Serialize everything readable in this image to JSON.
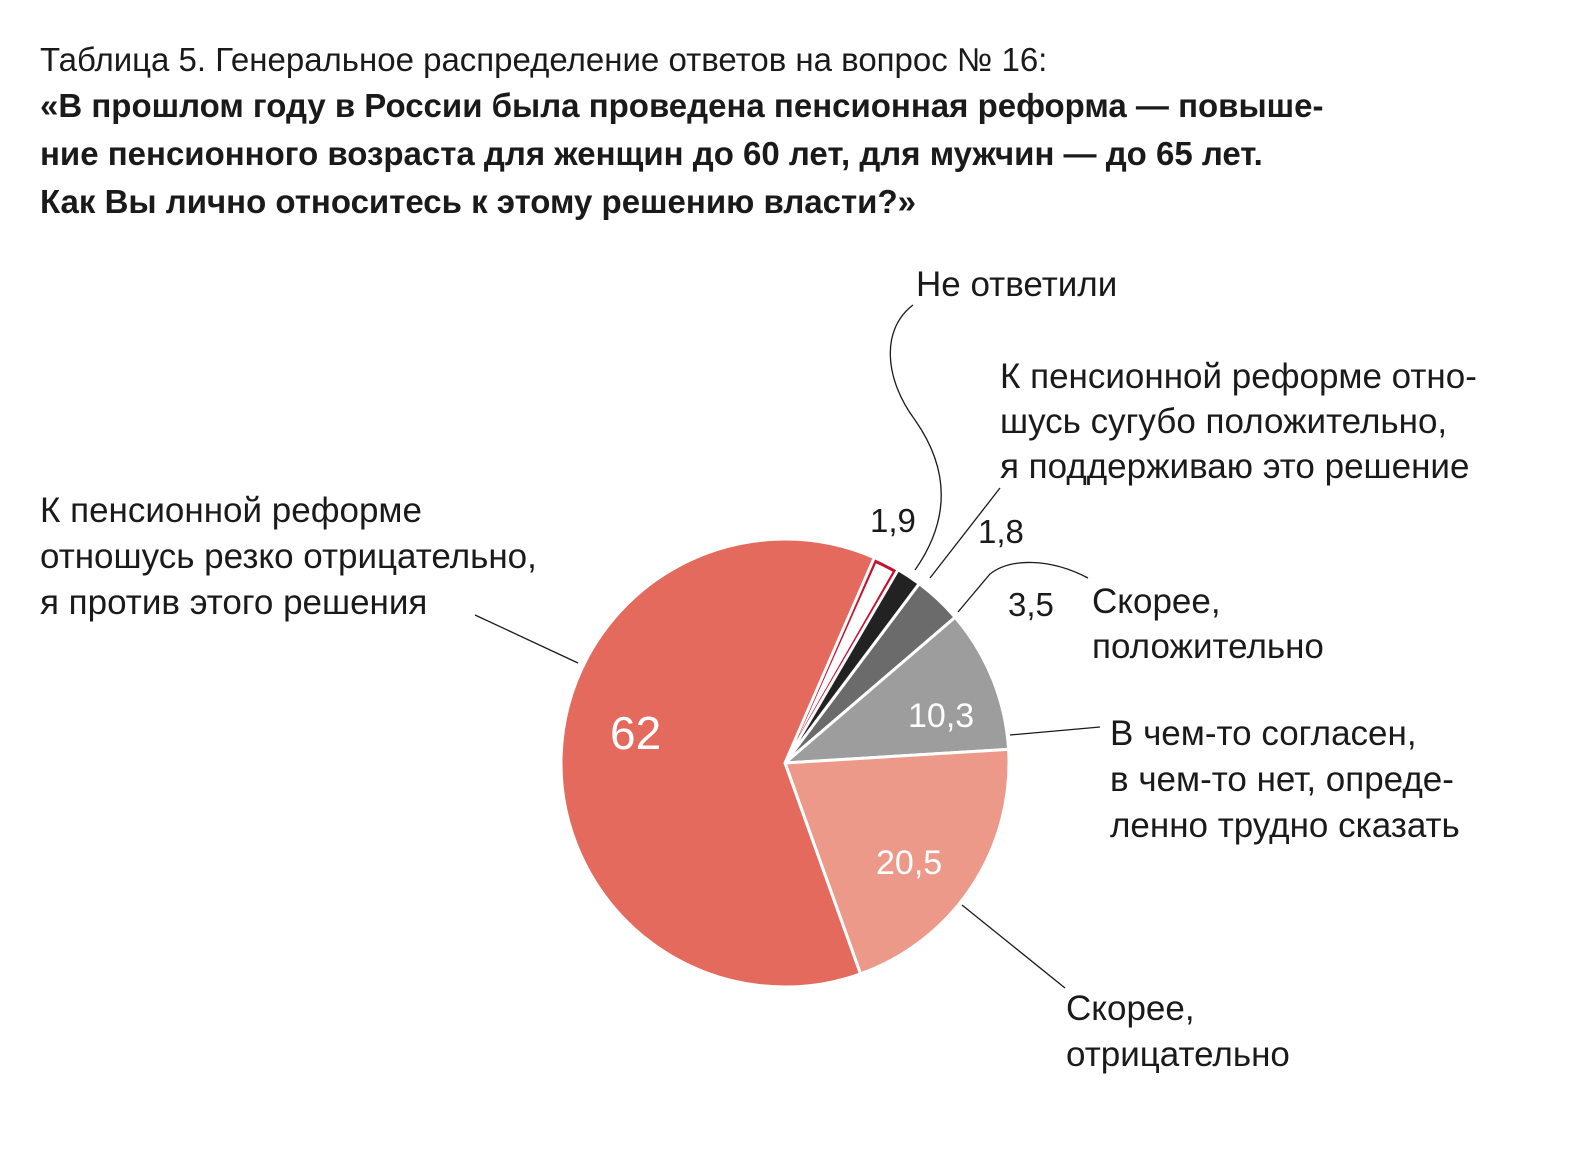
{
  "caption": {
    "title": "Таблица 5. Генеральное распределение ответов на вопрос № 16:",
    "question_lines": [
      "«В прошлом году в России была проведена пенсионная реформа — повыше-",
      "ние пенсионного возраста для женщин до 60 лет, для мужчин — до 65 лет.",
      "Как Вы лично относитесь к этому решению власти?»"
    ]
  },
  "chart_data": {
    "type": "pie",
    "title": "",
    "slices": [
      {
        "name_lines": [
          "Не ответили"
        ],
        "value": 1.9,
        "value_label": "1,9",
        "color": "#ffffff",
        "stroke": "#c8102e"
      },
      {
        "name_lines": [
          "К пенсионной реформе отно-",
          "шусь сугубо положительно,",
          "я поддерживаю это решение"
        ],
        "value": 1.8,
        "value_label": "1,8",
        "color": "#222222",
        "stroke": "#ffffff"
      },
      {
        "name_lines": [
          "Скорее,",
          "положительно"
        ],
        "value": 3.5,
        "value_label": "3,5",
        "color": "#6b6b6b",
        "stroke": "#ffffff"
      },
      {
        "name_lines": [
          "В чем-то согласен,",
          "в чем-то нет, опреде-",
          "ленно трудно сказать"
        ],
        "value": 10.3,
        "value_label": "10,3",
        "color": "#9d9d9d",
        "stroke": "#ffffff"
      },
      {
        "name_lines": [
          "Скорее,",
          "отрицательно"
        ],
        "value": 20.5,
        "value_label": "20,5",
        "color": "#ec998a",
        "stroke": "#ffffff"
      },
      {
        "name_lines": [
          "К пенсионной реформе",
          "отношусь резко отрицательно,",
          "я против этого решения"
        ],
        "value": 62,
        "value_label": "62",
        "color": "#e36a5c",
        "stroke": "#ffffff"
      }
    ]
  }
}
